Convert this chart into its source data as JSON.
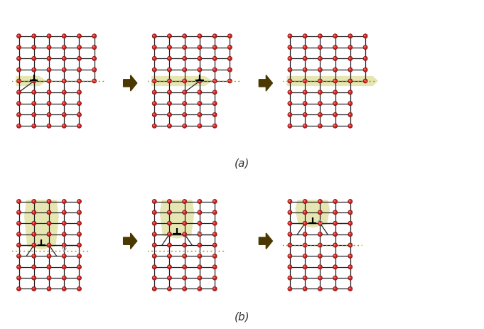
{
  "bg_color": "#ffffff",
  "atom_color_outer": "#cc2222",
  "atom_color_inner": "#ff6666",
  "atom_edge_color": "#881111",
  "line_color": "#222222",
  "highlight_color": "#dede9a",
  "highlight_alpha": 0.75,
  "arrow_color": "#4a3800",
  "glide_text_color": "#7a7a00",
  "glide_line_color": "#9a9a00",
  "label_a": "(a)",
  "label_b": "(b)"
}
